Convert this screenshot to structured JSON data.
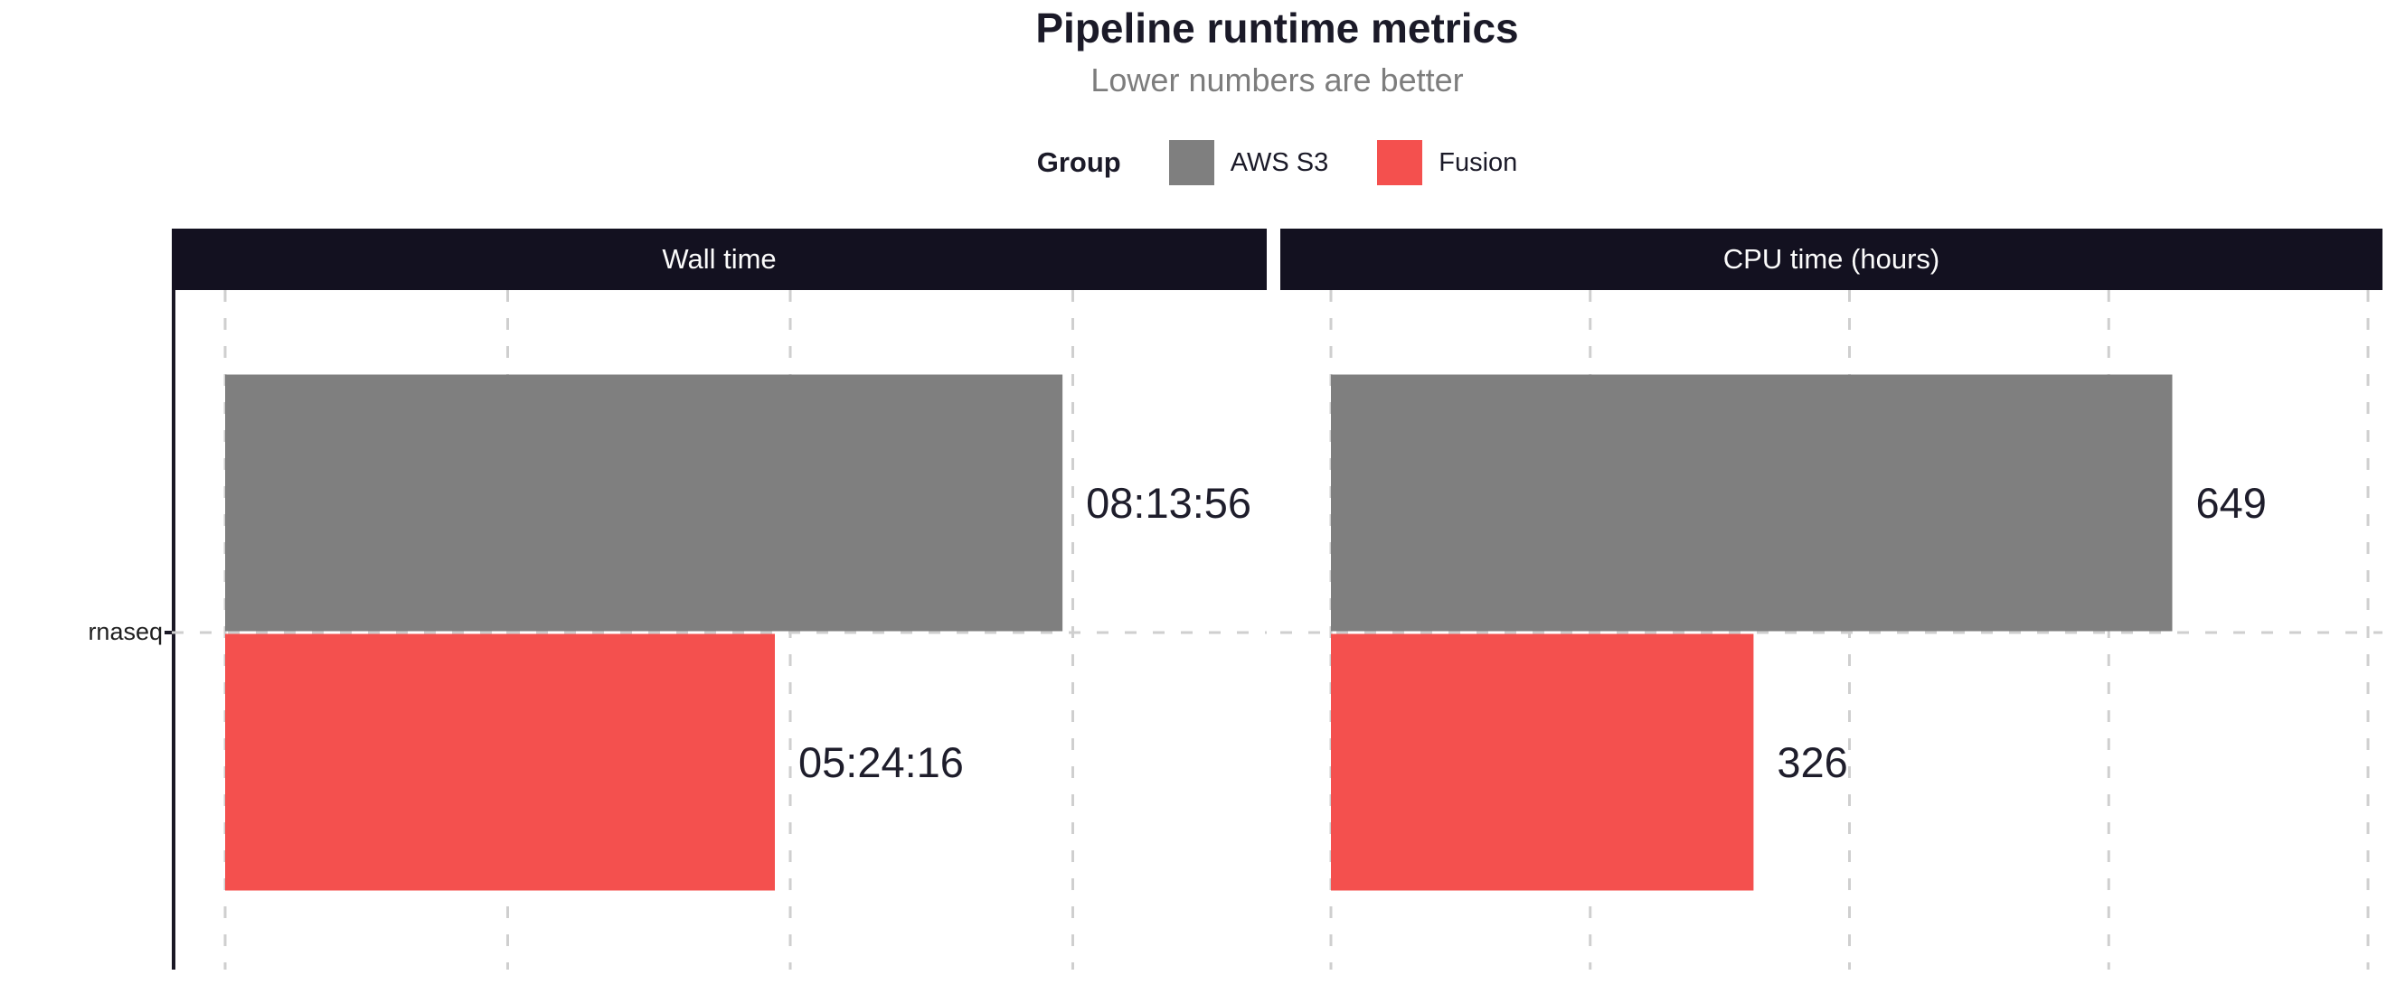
{
  "title": "Pipeline runtime metrics",
  "subtitle": "Lower numbers are better",
  "legend": {
    "title": "Group",
    "items": [
      {
        "label": "AWS S3",
        "color": "#7f7f7f"
      },
      {
        "label": "Fusion",
        "color": "#f4504e"
      }
    ]
  },
  "y_axis": {
    "category": "rnaseq"
  },
  "colors": {
    "strip_background": "#131120",
    "strip_text": "#fbfbfb",
    "title_text": "#1b1a28",
    "subtitle_text": "#7d7d7d",
    "gridline": "#cfcfcf",
    "axis_line": "#1a1825",
    "bar_label_text": "#1e1d2b"
  },
  "chart_data": [
    {
      "type": "bar",
      "orientation": "horizontal",
      "title": "Wall time",
      "categories": [
        "rnaseq"
      ],
      "series": [
        {
          "name": "AWS S3",
          "values": [
            29636
          ],
          "labels": [
            "08:13:56"
          ]
        },
        {
          "name": "Fusion",
          "values": [
            19456
          ],
          "labels": [
            "05:24:16"
          ]
        }
      ],
      "value_unit": "seconds (hh:mm:ss)",
      "xlim": [
        0,
        36864
      ],
      "x_gridlines": [
        0,
        10000,
        20000,
        30000
      ],
      "grid": "dashed",
      "x_tick_labels_visible": false,
      "legend_position": "top"
    },
    {
      "type": "bar",
      "orientation": "horizontal",
      "title": "CPU time (hours)",
      "categories": [
        "rnaseq"
      ],
      "series": [
        {
          "name": "AWS S3",
          "values": [
            649
          ],
          "labels": [
            "649"
          ]
        },
        {
          "name": "Fusion",
          "values": [
            326
          ],
          "labels": [
            "326"
          ]
        }
      ],
      "value_unit": "hours",
      "xlim": [
        0,
        811
      ],
      "x_gridlines": [
        0,
        200,
        400,
        600,
        800
      ],
      "grid": "dashed",
      "x_tick_labels_visible": false,
      "legend_position": "top"
    }
  ]
}
